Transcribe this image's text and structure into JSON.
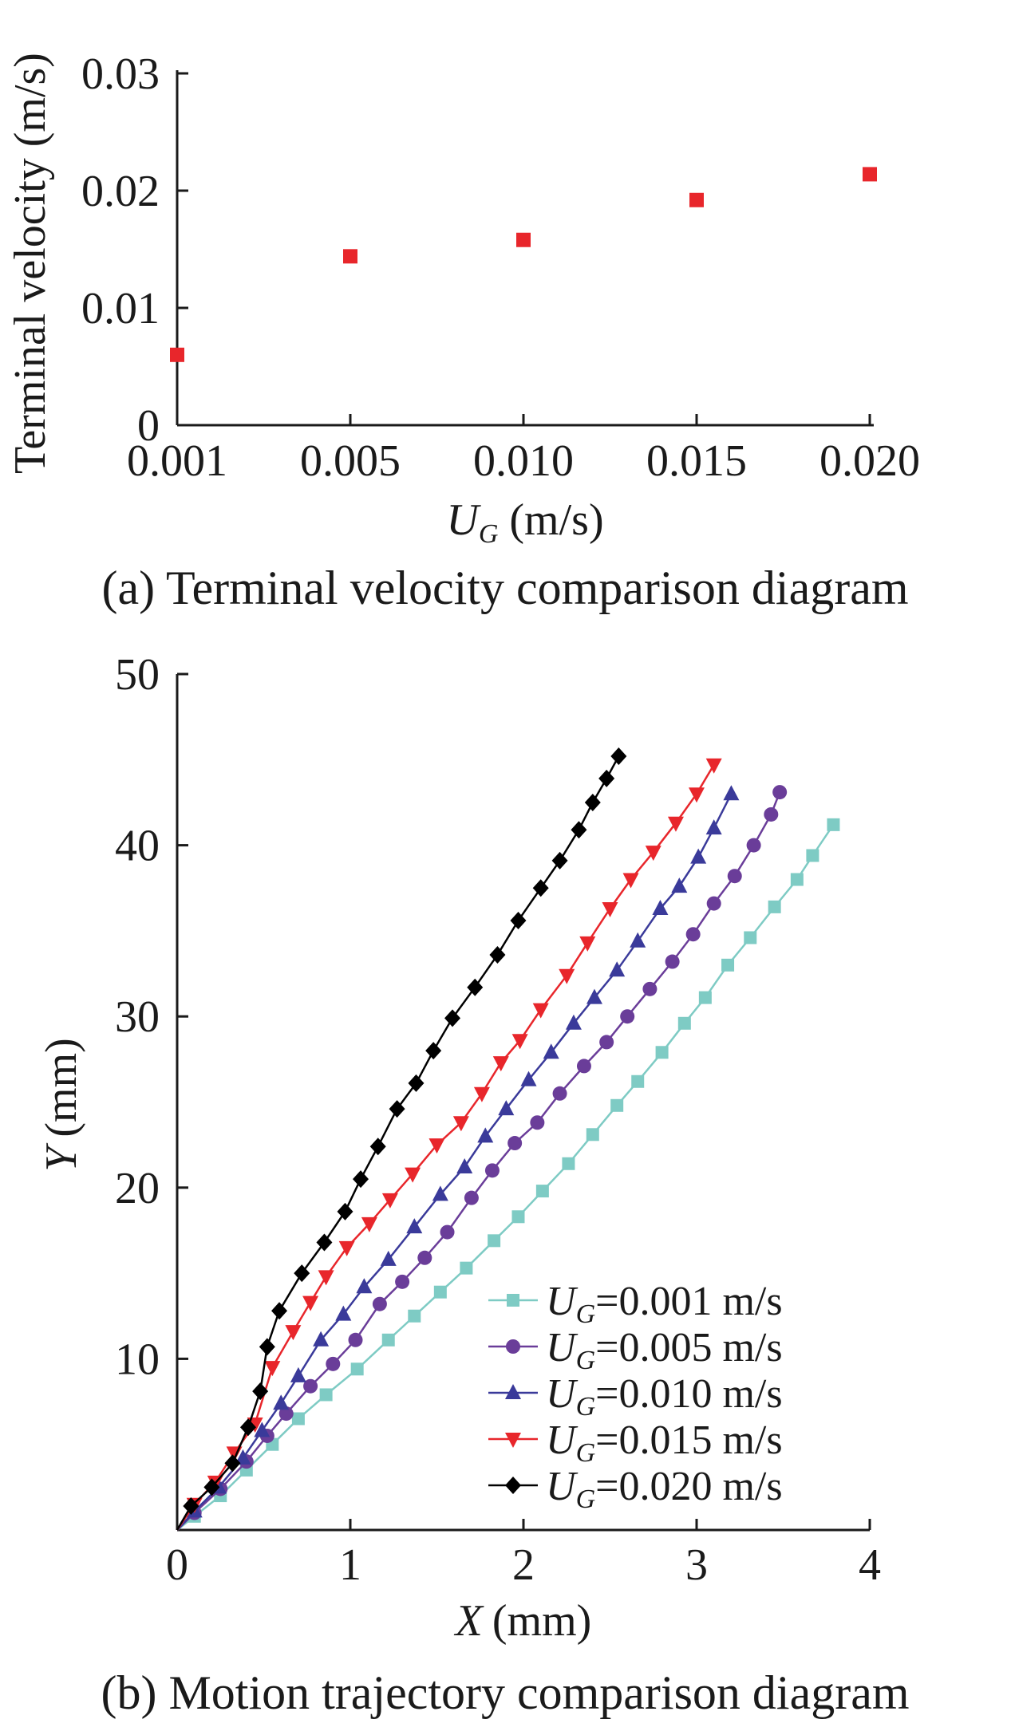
{
  "chart_data": [
    {
      "type": "scatter",
      "title": "",
      "caption": "(a) Terminal velocity comparison diagram",
      "xlabel_var": "U",
      "xlabel_sub": "G",
      "xlabel_unit": "(m/s)",
      "ylabel": "Terminal velocity (m/s)",
      "x_ticks": [
        "0.001",
        "0.005",
        "0.010",
        "0.015",
        "0.020"
      ],
      "y_ticks": [
        "0",
        "0.01",
        "0.02",
        "0.03"
      ],
      "ylim": [
        0,
        0.03
      ],
      "color": "#e8262b",
      "points": [
        {
          "x": "0.001",
          "y": 0.006
        },
        {
          "x": "0.005",
          "y": 0.0144
        },
        {
          "x": "0.010",
          "y": 0.0158
        },
        {
          "x": "0.015",
          "y": 0.0192
        },
        {
          "x": "0.020",
          "y": 0.0214
        }
      ]
    },
    {
      "type": "line",
      "title": "",
      "caption": "(b) Motion trajectory comparison diagram",
      "xlabel_var": "X",
      "xlabel_unit": "(mm)",
      "ylabel_var": "Y",
      "ylabel_unit": "(mm)",
      "xlim": [
        0,
        4
      ],
      "ylim": [
        0,
        50
      ],
      "x_ticks": [
        "0",
        "1",
        "2",
        "3",
        "4"
      ],
      "y_ticks": [
        "10",
        "20",
        "30",
        "40",
        "50"
      ],
      "legend_position": "bottom-right",
      "series": [
        {
          "legend_var": "U",
          "legend_sub": "G",
          "legend_value": "=0.001 m/s",
          "color": "#7ecbc4",
          "marker": "square",
          "points": [
            [
              0,
              0
            ],
            [
              0.1,
              0.8
            ],
            [
              0.25,
              2
            ],
            [
              0.4,
              3.5
            ],
            [
              0.55,
              5
            ],
            [
              0.7,
              6.5
            ],
            [
              0.86,
              7.9
            ],
            [
              1.04,
              9.4
            ],
            [
              1.22,
              11.1
            ],
            [
              1.37,
              12.5
            ],
            [
              1.52,
              13.9
            ],
            [
              1.67,
              15.3
            ],
            [
              1.83,
              16.9
            ],
            [
              1.97,
              18.3
            ],
            [
              2.11,
              19.8
            ],
            [
              2.26,
              21.4
            ],
            [
              2.4,
              23.1
            ],
            [
              2.54,
              24.8
            ],
            [
              2.66,
              26.2
            ],
            [
              2.8,
              27.9
            ],
            [
              2.93,
              29.6
            ],
            [
              3.05,
              31.1
            ],
            [
              3.18,
              33
            ],
            [
              3.31,
              34.6
            ],
            [
              3.45,
              36.4
            ],
            [
              3.58,
              38
            ],
            [
              3.67,
              39.4
            ],
            [
              3.79,
              41.2
            ]
          ]
        },
        {
          "legend_var": "U",
          "legend_sub": "G",
          "legend_value": "=0.005 m/s",
          "color": "#6a3d99",
          "marker": "circle",
          "points": [
            [
              0,
              0
            ],
            [
              0.1,
              1
            ],
            [
              0.25,
              2.4
            ],
            [
              0.4,
              4
            ],
            [
              0.52,
              5.5
            ],
            [
              0.63,
              6.8
            ],
            [
              0.77,
              8.4
            ],
            [
              0.9,
              9.7
            ],
            [
              1.03,
              11.1
            ],
            [
              1.17,
              13.2
            ],
            [
              1.3,
              14.5
            ],
            [
              1.43,
              15.9
            ],
            [
              1.56,
              17.4
            ],
            [
              1.7,
              19.4
            ],
            [
              1.82,
              21
            ],
            [
              1.95,
              22.6
            ],
            [
              2.08,
              23.8
            ],
            [
              2.21,
              25.5
            ],
            [
              2.35,
              27.1
            ],
            [
              2.48,
              28.5
            ],
            [
              2.6,
              30
            ],
            [
              2.73,
              31.6
            ],
            [
              2.86,
              33.2
            ],
            [
              2.98,
              34.8
            ],
            [
              3.1,
              36.6
            ],
            [
              3.22,
              38.2
            ],
            [
              3.33,
              40
            ],
            [
              3.43,
              41.8
            ],
            [
              3.48,
              43.1
            ]
          ]
        },
        {
          "legend_var": "U",
          "legend_sub": "G",
          "legend_value": "=0.010 m/s",
          "color": "#3a3a9a",
          "marker": "triangle-up",
          "points": [
            [
              0,
              0
            ],
            [
              0.1,
              1.1
            ],
            [
              0.24,
              2.5
            ],
            [
              0.38,
              4.2
            ],
            [
              0.49,
              5.8
            ],
            [
              0.6,
              7.4
            ],
            [
              0.7,
              9
            ],
            [
              0.83,
              11.1
            ],
            [
              0.96,
              12.6
            ],
            [
              1.08,
              14.2
            ],
            [
              1.22,
              15.8
            ],
            [
              1.37,
              17.7
            ],
            [
              1.52,
              19.6
            ],
            [
              1.66,
              21.2
            ],
            [
              1.78,
              23
            ],
            [
              1.9,
              24.6
            ],
            [
              2.03,
              26.3
            ],
            [
              2.16,
              27.9
            ],
            [
              2.29,
              29.6
            ],
            [
              2.41,
              31.1
            ],
            [
              2.54,
              32.7
            ],
            [
              2.66,
              34.4
            ],
            [
              2.79,
              36.3
            ],
            [
              2.9,
              37.6
            ],
            [
              3.01,
              39.3
            ],
            [
              3.1,
              41
            ],
            [
              3.2,
              43
            ]
          ]
        },
        {
          "legend_var": "U",
          "legend_sub": "G",
          "legend_value": "=0.015 m/s",
          "color": "#e8262b",
          "marker": "triangle-down",
          "points": [
            [
              0,
              0
            ],
            [
              0.1,
              1.5
            ],
            [
              0.22,
              2.8
            ],
            [
              0.33,
              4.5
            ],
            [
              0.45,
              6.2
            ],
            [
              0.55,
              9.5
            ],
            [
              0.67,
              11.6
            ],
            [
              0.77,
              13.3
            ],
            [
              0.86,
              14.8
            ],
            [
              0.98,
              16.5
            ],
            [
              1.11,
              17.9
            ],
            [
              1.23,
              19.3
            ],
            [
              1.36,
              20.8
            ],
            [
              1.5,
              22.5
            ],
            [
              1.64,
              23.8
            ],
            [
              1.76,
              25.5
            ],
            [
              1.87,
              27.3
            ],
            [
              1.98,
              28.6
            ],
            [
              2.1,
              30.4
            ],
            [
              2.25,
              32.4
            ],
            [
              2.37,
              34.3
            ],
            [
              2.5,
              36.3
            ],
            [
              2.62,
              38
            ],
            [
              2.75,
              39.6
            ],
            [
              2.88,
              41.3
            ],
            [
              3.0,
              43
            ],
            [
              3.1,
              44.7
            ]
          ]
        },
        {
          "legend_var": "U",
          "legend_sub": "G",
          "legend_value": "=0.020 m/s",
          "color": "#000000",
          "marker": "diamond",
          "points": [
            [
              0,
              0
            ],
            [
              0.08,
              1.4
            ],
            [
              0.2,
              2.5
            ],
            [
              0.32,
              3.9
            ],
            [
              0.41,
              6
            ],
            [
              0.48,
              8.1
            ],
            [
              0.52,
              10.7
            ],
            [
              0.59,
              12.8
            ],
            [
              0.72,
              15
            ],
            [
              0.85,
              16.8
            ],
            [
              0.97,
              18.6
            ],
            [
              1.06,
              20.5
            ],
            [
              1.16,
              22.4
            ],
            [
              1.27,
              24.6
            ],
            [
              1.38,
              26.1
            ],
            [
              1.48,
              28
            ],
            [
              1.59,
              29.9
            ],
            [
              1.72,
              31.7
            ],
            [
              1.85,
              33.6
            ],
            [
              1.97,
              35.6
            ],
            [
              2.1,
              37.5
            ],
            [
              2.21,
              39.1
            ],
            [
              2.32,
              40.9
            ],
            [
              2.4,
              42.5
            ],
            [
              2.48,
              43.9
            ],
            [
              2.55,
              45.2
            ]
          ]
        }
      ]
    }
  ]
}
